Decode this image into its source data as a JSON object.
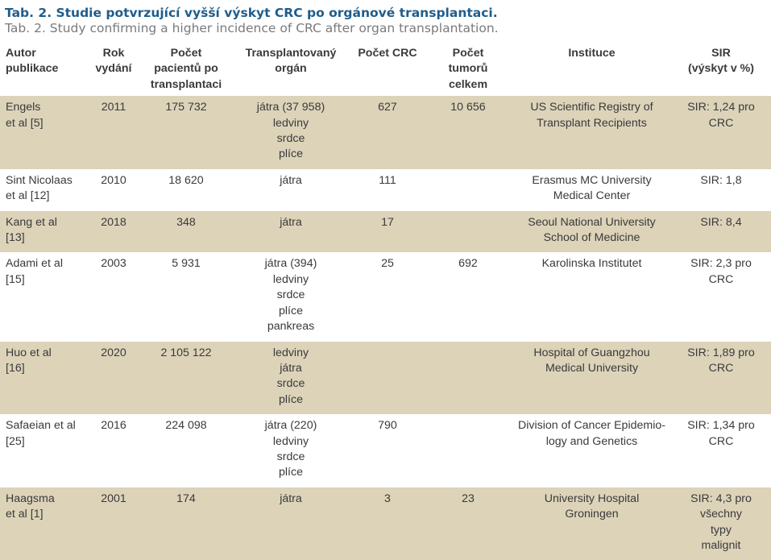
{
  "caption": {
    "czech": "Tab. 2. Studie potvrzující vyšší výskyt CRC po orgánové transplantaci.",
    "english": "Tab. 2. Study confirming a higher incidence of CRC after organ transplantation."
  },
  "table": {
    "headers": [
      [
        "Autor",
        "publikace"
      ],
      [
        "Rok",
        "vydání"
      ],
      [
        "Počet",
        "pacientů po",
        "transplantaci"
      ],
      [
        "Transplantovaný",
        "orgán"
      ],
      [
        "Počet CRC"
      ],
      [
        "Počet",
        "tumorů",
        "celkem"
      ],
      [
        "Instituce"
      ],
      [
        "SIR",
        "(výskyt v %)"
      ]
    ],
    "rows": [
      {
        "author": [
          "Engels",
          "et al [5]"
        ],
        "year": "2011",
        "patients": "175 732",
        "organ": [
          "játra (37 958)",
          "ledviny",
          "srdce",
          "plíce"
        ],
        "crc": "627",
        "tumors": "10 656",
        "institution": [
          "US Scientific Registry of",
          "Transplant Recipients"
        ],
        "sir": [
          "SIR: 1,24 pro",
          "CRC"
        ]
      },
      {
        "author": [
          "Sint Nicolaas",
          "et al [12]"
        ],
        "year": "2010",
        "patients": "18 620",
        "organ": [
          "játra"
        ],
        "crc": "111",
        "tumors": "",
        "institution": [
          "Erasmus MC University",
          "Medical Center"
        ],
        "sir": [
          "SIR: 1,8"
        ]
      },
      {
        "author": [
          "Kang et al",
          "[13]"
        ],
        "year": "2018",
        "patients": "348",
        "organ": [
          "játra"
        ],
        "crc": "17",
        "tumors": "",
        "institution": [
          "Seoul National University",
          "School of Medicine"
        ],
        "sir": [
          "SIR: 8,4"
        ]
      },
      {
        "author": [
          "Adami et al",
          "[15]"
        ],
        "year": "2003",
        "patients": "5 931",
        "organ": [
          "játra (394)",
          "ledviny",
          "srdce",
          "plíce",
          "pankreas"
        ],
        "crc": "25",
        "tumors": "692",
        "institution": [
          "Karolinska Institutet"
        ],
        "sir": [
          "SIR: 2,3 pro",
          "CRC"
        ]
      },
      {
        "author": [
          "Huo et al",
          "[16]"
        ],
        "year": "2020",
        "patients": "2 105 122",
        "organ": [
          "ledviny",
          "játra",
          "srdce",
          "plíce"
        ],
        "crc": "",
        "tumors": "",
        "institution": [
          "Hospital of Guangzhou",
          "Medical University"
        ],
        "sir": [
          "SIR: 1,89 pro",
          "CRC"
        ]
      },
      {
        "author": [
          "Safaeian et al",
          "[25]"
        ],
        "year": "2016",
        "patients": "224 098",
        "organ": [
          "játra (220)",
          "ledviny",
          "srdce",
          "plíce"
        ],
        "crc": "790",
        "tumors": "",
        "institution": [
          "Division of Cancer Epidemio-",
          "logy and Genetics"
        ],
        "sir": [
          "SIR: 1,34 pro",
          "CRC"
        ]
      },
      {
        "author": [
          "Haagsma",
          "et al [1]"
        ],
        "year": "2001",
        "patients": "174",
        "organ": [
          "játra"
        ],
        "crc": "3",
        "tumors": "23",
        "institution": [
          "University Hospital",
          "Groningen"
        ],
        "sir": [
          "SIR: 4,3 pro",
          "všechny",
          "typy",
          "malignit"
        ]
      }
    ]
  },
  "colors": {
    "caption_title": "#1f5d8c",
    "caption_subtitle": "#7a7a7a",
    "row_shade": "#dcd3b9",
    "text": "#3a3a3a"
  }
}
